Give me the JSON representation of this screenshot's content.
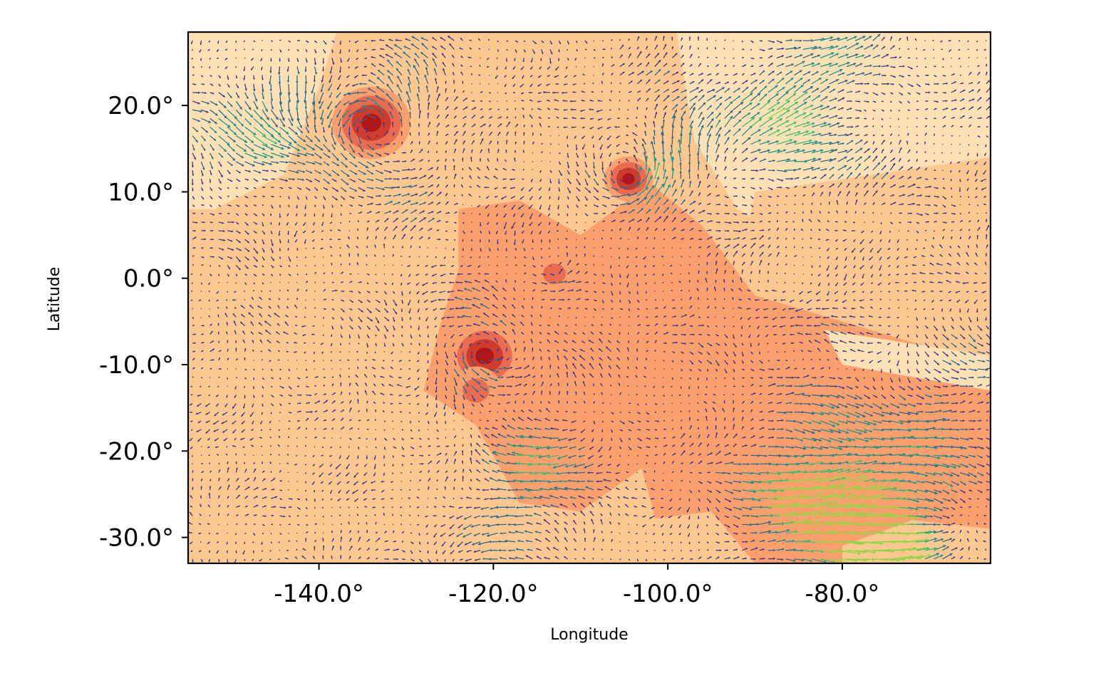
{
  "chart_data": {
    "type": "heatmap",
    "subtype": "filled contour map with wind vector (quiver) overlay",
    "title": "",
    "xlabel": "Longitude",
    "ylabel": "Latitude",
    "xlim": [
      -155,
      -63
    ],
    "ylim": [
      -33,
      28.5
    ],
    "xticks": [
      -140,
      -120,
      -100,
      -80
    ],
    "xtick_labels": [
      "-140.0°",
      "-120.0°",
      "-100.0°",
      "-80.0°"
    ],
    "yticks": [
      20,
      10,
      0,
      -10,
      -20,
      -30
    ],
    "ytick_labels": [
      "20.0°",
      "10.0°",
      "0.0°",
      "-10.0°",
      "-20.0°",
      "-30.0°"
    ],
    "grid": false,
    "legend": "none",
    "field_colormap": [
      "#fde0b4",
      "#fcc890",
      "#fb9f6c",
      "#ea6c50",
      "#cf3b2c",
      "#b21515"
    ],
    "vector_colormap": [
      "#3b3b8a",
      "#2a6a8e",
      "#21918c",
      "#3fbc73",
      "#8fd744"
    ],
    "background_regions": [
      {
        "level": 1,
        "points": [
          [
            -155,
            28.5
          ],
          [
            -123,
            28.5
          ],
          [
            -127,
            22
          ],
          [
            -133,
            10
          ],
          [
            -137,
            -2
          ],
          [
            -155,
            -5
          ]
        ]
      },
      {
        "level": 0,
        "points": [
          [
            -155,
            28.5
          ],
          [
            -138,
            28.5
          ],
          [
            -140,
            22
          ],
          [
            -144,
            12
          ],
          [
            -152,
            8
          ],
          [
            -155,
            8
          ]
        ]
      },
      {
        "level": 0,
        "points": [
          [
            -99,
            28.5
          ],
          [
            -63,
            28.5
          ],
          [
            -63,
            -3
          ],
          [
            -72,
            -2
          ],
          [
            -82,
            2
          ],
          [
            -92,
            8
          ],
          [
            -97,
            16
          ]
        ]
      },
      {
        "level": 1,
        "points": [
          [
            -90,
            10
          ],
          [
            -63,
            14
          ],
          [
            -63,
            -4
          ],
          [
            -80,
            -6
          ],
          [
            -92,
            0
          ]
        ]
      },
      {
        "level": 2,
        "points": [
          [
            -124,
            8
          ],
          [
            -117,
            9
          ],
          [
            -110,
            5
          ],
          [
            -102,
            11
          ],
          [
            -96,
            6
          ],
          [
            -90,
            -2
          ],
          [
            -80,
            -5
          ],
          [
            -70,
            -8
          ],
          [
            -63,
            -10
          ],
          [
            -63,
            -33
          ],
          [
            -100,
            -33
          ],
          [
            -103,
            -22
          ],
          [
            -110,
            -27
          ],
          [
            -117,
            -26
          ],
          [
            -122,
            -17
          ],
          [
            -128,
            -13
          ],
          [
            -126,
            -5
          ],
          [
            -124,
            1
          ]
        ]
      },
      {
        "level": 1,
        "points": [
          [
            -103,
            -28
          ],
          [
            -95,
            -27
          ],
          [
            -90,
            -33
          ],
          [
            -103,
            -33
          ]
        ]
      },
      {
        "level": 1,
        "points": [
          [
            -80,
            -31
          ],
          [
            -72,
            -28
          ],
          [
            -63,
            -29
          ],
          [
            -63,
            -33
          ],
          [
            -80,
            -33
          ]
        ]
      },
      {
        "level": 0,
        "points": [
          [
            -82,
            -6
          ],
          [
            -63,
            -9
          ],
          [
            -63,
            -13
          ],
          [
            -80,
            -10
          ]
        ]
      }
    ],
    "hotspots": [
      {
        "lon": -134,
        "lat": 18,
        "radius_deg": 4.5,
        "peak_level": 5
      },
      {
        "lon": -104.5,
        "lat": 11.5,
        "radius_deg": 2.8,
        "peak_level": 5
      },
      {
        "lon": -113,
        "lat": 0.5,
        "radius_deg": 2.6,
        "peak_level": 3
      },
      {
        "lon": -121,
        "lat": -9,
        "radius_deg": 4.2,
        "peak_level": 5
      },
      {
        "lon": -122,
        "lat": -13,
        "radius_deg": 3.0,
        "peak_level": 3
      }
    ],
    "vector_field": {
      "grid_step_deg": 2.0,
      "max_speed": 3.2,
      "features": [
        {
          "type": "cyclone",
          "lon": -134,
          "lat": 18,
          "radius_deg": 7,
          "strength": 1.6
        },
        {
          "type": "cyclone",
          "lon": -104.5,
          "lat": 11.5,
          "radius_deg": 6,
          "strength": 1.3
        },
        {
          "type": "cyclone",
          "lon": -113,
          "lat": 0.5,
          "radius_deg": 4,
          "strength": 0.8
        },
        {
          "type": "cyclone",
          "lon": -121,
          "lat": -9,
          "radius_deg": 6,
          "strength": 1.1
        },
        {
          "type": "jet",
          "lon": -82,
          "lat": -24,
          "u": 2.4,
          "v": 0.1,
          "radius_deg": 9
        },
        {
          "type": "jet",
          "lon": -78,
          "lat": -30,
          "u": 2.8,
          "v": 0.0,
          "radius_deg": 6
        },
        {
          "type": "jet",
          "lon": -115,
          "lat": -24,
          "u": -2.4,
          "v": 0.2,
          "radius_deg": 6
        },
        {
          "type": "jet",
          "lon": -85,
          "lat": 20,
          "u": 2.2,
          "v": 0.9,
          "radius_deg": 8
        },
        {
          "type": "jet",
          "lon": -150,
          "lat": 17,
          "u": 1.6,
          "v": -1.2,
          "radius_deg": 6
        },
        {
          "type": "jet",
          "lon": -100,
          "lat": 17,
          "u": 0.9,
          "v": 1.6,
          "radius_deg": 4
        },
        {
          "type": "jet",
          "lon": -78,
          "lat": -5,
          "u": -2.0,
          "v": -0.3,
          "radius_deg": 5
        },
        {
          "type": "jet",
          "lon": -70,
          "lat": -12,
          "u": 1.6,
          "v": -0.7,
          "radius_deg": 5
        }
      ]
    }
  }
}
